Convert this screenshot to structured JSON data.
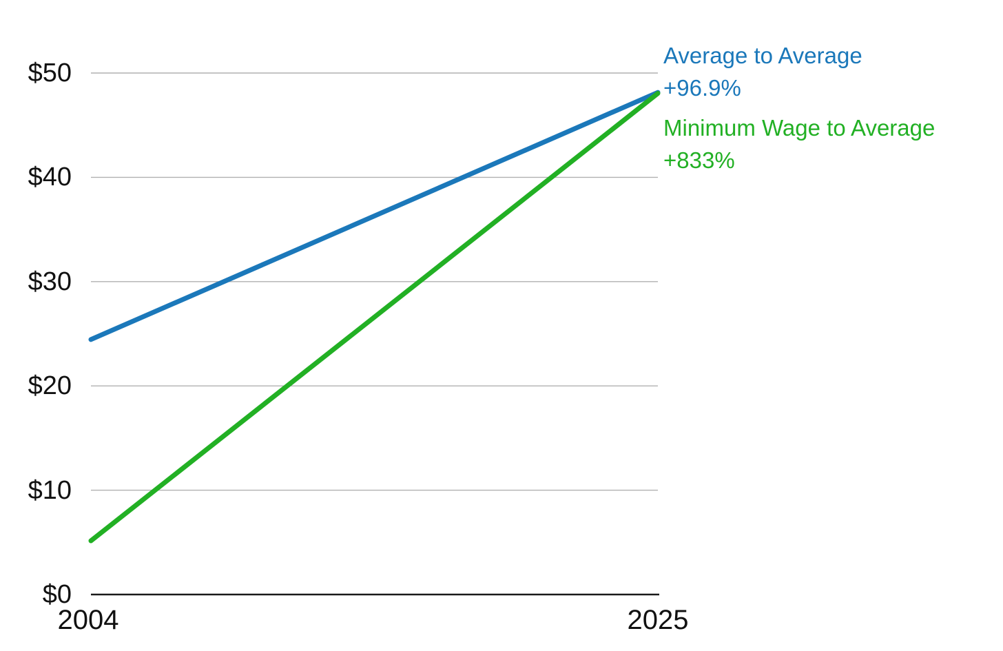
{
  "chart_data": {
    "type": "line",
    "subtype": "slope-chart",
    "title": "",
    "xlabel": "",
    "ylabel": "",
    "x": [
      2004,
      2025
    ],
    "xlim": [
      2004,
      2025
    ],
    "ylim": [
      0,
      50
    ],
    "series": [
      {
        "name": "Average to Average",
        "values": [
          24.45,
          48.14
        ],
        "change_label": "+96.9%",
        "color": "#1b78ba"
      },
      {
        "name": "Minimum Wage to Average",
        "values": [
          5.15,
          48.05
        ],
        "change_label": "+833%",
        "color": "#22b024"
      }
    ],
    "yticks": {
      "values": [
        0,
        10,
        20,
        30,
        40,
        50
      ],
      "labels": [
        "$0",
        "$10",
        "$20",
        "$30",
        "$40",
        "$50"
      ]
    },
    "xticks": {
      "values": [
        2004,
        2025
      ],
      "labels": [
        "2004",
        "2025"
      ]
    },
    "grid": "horizontal-gridlines",
    "gridline_color": "#b0b0b0",
    "axis_line_color": "#1a1a1a",
    "tick_label_color": "#111111",
    "background": "#ffffff",
    "legend_position": "right-annotations"
  }
}
